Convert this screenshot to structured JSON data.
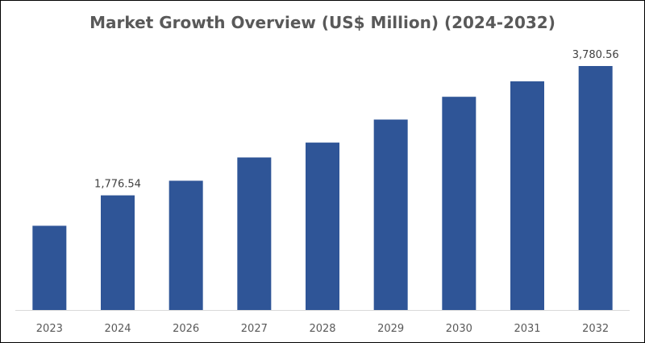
{
  "chart_data": {
    "type": "bar",
    "title": "Market Growth Overview (US$ Million) (2024-2032)",
    "categories": [
      "2023",
      "2024",
      "2026",
      "2027",
      "2028",
      "2029",
      "2030",
      "2031",
      "2032"
    ],
    "values": [
      1305,
      1776.54,
      2003,
      2364,
      2594,
      2951,
      3304,
      3543,
      3780.56
    ],
    "data_labels": [
      {
        "category": "2024",
        "text": "1,776.54"
      },
      {
        "category": "2032",
        "text": "3,780.56"
      }
    ],
    "xlabel": "",
    "ylabel": "",
    "ylim": [
      0,
      3780.56
    ],
    "grid": false,
    "legend": "none",
    "bar_color": "#2F5597"
  }
}
